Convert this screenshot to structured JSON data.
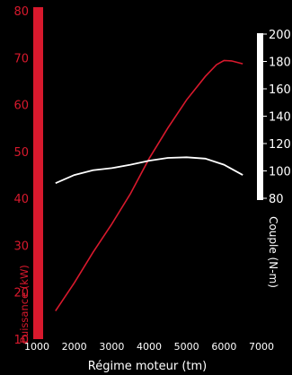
{
  "chart_data": {
    "type": "line",
    "x_axis": {
      "label": "Régime moteur (tm)",
      "range": [
        1000,
        7000
      ],
      "ticks": [
        "1000",
        "2000",
        "3000",
        "4000",
        "5000",
        "6000",
        "7000"
      ]
    },
    "y_axis_left": {
      "label": "Puissance (kW)",
      "range": [
        10,
        80
      ],
      "ticks": [
        "10",
        "20",
        "30",
        "40",
        "50",
        "60",
        "70",
        "80"
      ],
      "color": "#d8192d"
    },
    "y_axis_right": {
      "label": "Couple (N-m)",
      "range": [
        80,
        200
      ],
      "ticks": [
        "80",
        "100",
        "120",
        "140",
        "160",
        "180",
        "200"
      ],
      "color": "#ffffff"
    },
    "series": [
      {
        "axis": "left",
        "color": "#d8192d",
        "x": [
          1500,
          2000,
          2500,
          3000,
          3500,
          4000,
          4500,
          5000,
          5500,
          5800,
          6000,
          6200,
          6500
        ],
        "y": [
          16,
          22,
          28.5,
          34.5,
          41,
          48.5,
          55,
          61,
          66,
          68.5,
          69.4,
          69.3,
          68.7
        ]
      },
      {
        "axis": "right",
        "color": "#ffffff",
        "x": [
          1500,
          2000,
          2500,
          3000,
          3500,
          4000,
          4500,
          5000,
          5500,
          6000,
          6500
        ],
        "y": [
          91,
          97,
          100.5,
          102,
          104.5,
          107.5,
          109.5,
          110,
          109,
          104.5,
          97
        ]
      }
    ],
    "grid": false,
    "legend": "none"
  }
}
